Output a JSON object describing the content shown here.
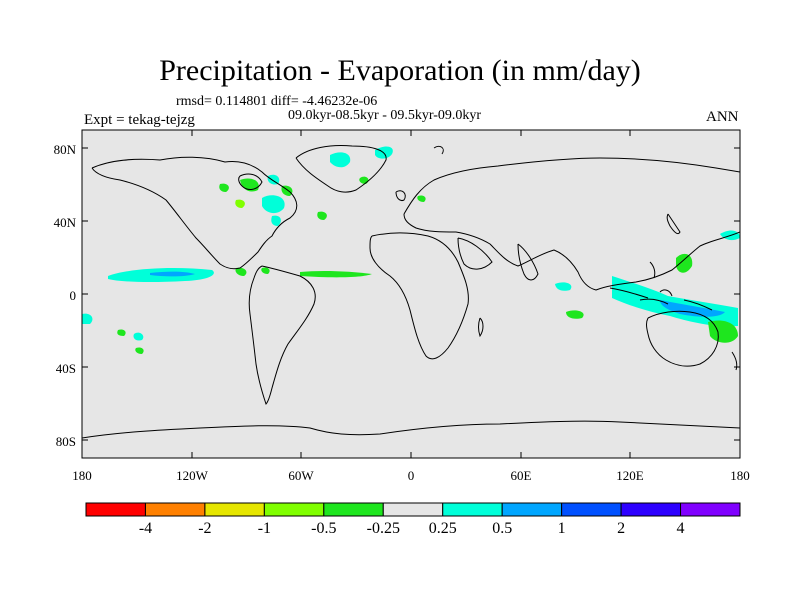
{
  "title": "Precipitation - Evaporation (in mm/day)",
  "stats": "rmsd= 0.114801 diff= -4.46232e-06",
  "period": "09.0kyr-08.5kyr - 09.5kyr-09.0kyr",
  "expt": "Expt = tekag-tejzg",
  "season": "ANN",
  "map": {
    "lon_range": [
      -180,
      180
    ],
    "lat_range": [
      -90,
      90
    ],
    "lat_tick_labels": [
      "80N",
      "40N",
      "0",
      "40S",
      "80S"
    ],
    "lon_tick_labels": [
      "180",
      "120W",
      "60W",
      "0",
      "60E",
      "120E",
      "180"
    ],
    "background_color": "#e6e6e6",
    "coastline_color": "#000000"
  },
  "colorbar": {
    "colors": [
      "#ff0000",
      "#ff8000",
      "#e6e600",
      "#80ff00",
      "#1ee61e",
      "#e6e6e6",
      "#00ffd9",
      "#00a6ff",
      "#0050ff",
      "#2d00ff",
      "#8000ff"
    ],
    "labels": [
      "-4",
      "-2",
      "-1",
      "-0.5",
      "-0.25",
      "0.25",
      "0.5",
      "1",
      "2",
      "4"
    ]
  }
}
